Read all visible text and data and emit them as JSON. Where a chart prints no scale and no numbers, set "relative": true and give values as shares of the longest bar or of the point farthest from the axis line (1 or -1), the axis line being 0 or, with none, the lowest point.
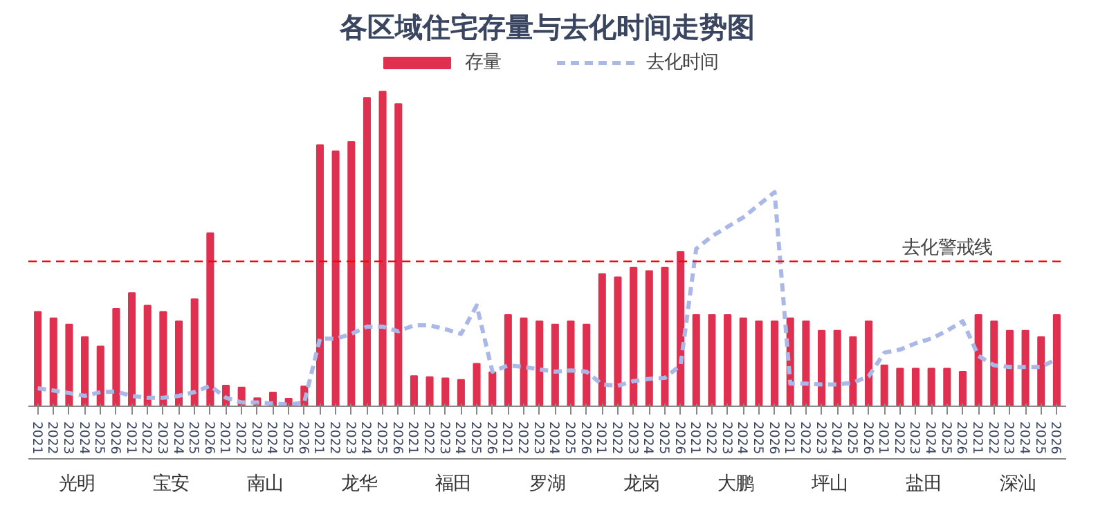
{
  "chart_data": {
    "type": "bar",
    "title": "各区域住宅存量与去化时间走势图",
    "relative": true,
    "legend": "top",
    "categories": [
      "2021",
      "2022",
      "2023",
      "2024",
      "2025",
      "2026",
      "2021",
      "2022",
      "2023",
      "2024",
      "2025",
      "2026",
      "2021",
      "2022",
      "2023",
      "2024",
      "2025",
      "2026",
      "2021",
      "2022",
      "2023",
      "2024",
      "2025",
      "2026",
      "2021",
      "2022",
      "2023",
      "2024",
      "2025",
      "2026",
      "2021",
      "2022",
      "2023",
      "2024",
      "2025",
      "2026",
      "2021",
      "2022",
      "2023",
      "2024",
      "2025",
      "2026",
      "2021",
      "2022",
      "2023",
      "2024",
      "2025",
      "2026",
      "2021",
      "2022",
      "2023",
      "2024",
      "2025",
      "2026",
      "2021",
      "2022",
      "2023",
      "2024",
      "2025",
      "2026",
      "2021",
      "2022",
      "2023",
      "2024",
      "2025",
      "2026"
    ],
    "annotations": [
      "光明",
      "宝安",
      "南山",
      "龙华",
      "福田",
      "罗湖",
      "龙岗",
      "大鹏",
      "坪山",
      "盐田",
      "深汕"
    ],
    "series": [
      {
        "name": "存量",
        "color": "#e0304f",
        "values": [
          0.3,
          0.28,
          0.26,
          0.22,
          0.19,
          0.31,
          0.36,
          0.32,
          0.3,
          0.27,
          0.34,
          0.55,
          0.066,
          0.06,
          0.026,
          0.044,
          0.024,
          0.063,
          0.83,
          0.81,
          0.84,
          0.98,
          1,
          0.96,
          0.096,
          0.093,
          0.089,
          0.084,
          0.135,
          0.108,
          0.29,
          0.28,
          0.27,
          0.26,
          0.27,
          0.26,
          0.42,
          0.41,
          0.44,
          0.43,
          0.44,
          0.49,
          0.29,
          0.29,
          0.29,
          0.28,
          0.27,
          0.27,
          0.28,
          0.27,
          0.24,
          0.24,
          0.22,
          0.27,
          0.13,
          0.12,
          0.12,
          0.12,
          0.12,
          0.11,
          0.29,
          0.27,
          0.24,
          0.24,
          0.22,
          0.29
        ]
      },
      {
        "name": "去化时间",
        "type": "line",
        "color": "#a9b8e6",
        "line_style": "dashed",
        "values": [
          0.057,
          0.05,
          0.042,
          0.033,
          0.045,
          0.047,
          0.033,
          0.027,
          0.027,
          0.033,
          0.045,
          0.065,
          0.027,
          0.012,
          0.012,
          0.009,
          0.005,
          0.012,
          0.215,
          0.214,
          0.23,
          0.253,
          0.253,
          0.238,
          0.257,
          0.257,
          0.245,
          0.23,
          0.32,
          0.11,
          0.13,
          0.125,
          0.117,
          0.11,
          0.114,
          0.11,
          0.069,
          0.065,
          0.08,
          0.087,
          0.09,
          0.13,
          0.5,
          0.54,
          0.57,
          0.6,
          0.64,
          0.68,
          0.072,
          0.072,
          0.069,
          0.069,
          0.075,
          0.095,
          0.17,
          0.18,
          0.2,
          0.215,
          0.24,
          0.27,
          0.16,
          0.13,
          0.125,
          0.125,
          0.125,
          0.15
        ]
      }
    ],
    "ref_lines": [
      {
        "axis": "y",
        "value": 0.46,
        "label": "去化警戒线",
        "color": "#ff0000",
        "line_style": "dashed"
      }
    ]
  }
}
